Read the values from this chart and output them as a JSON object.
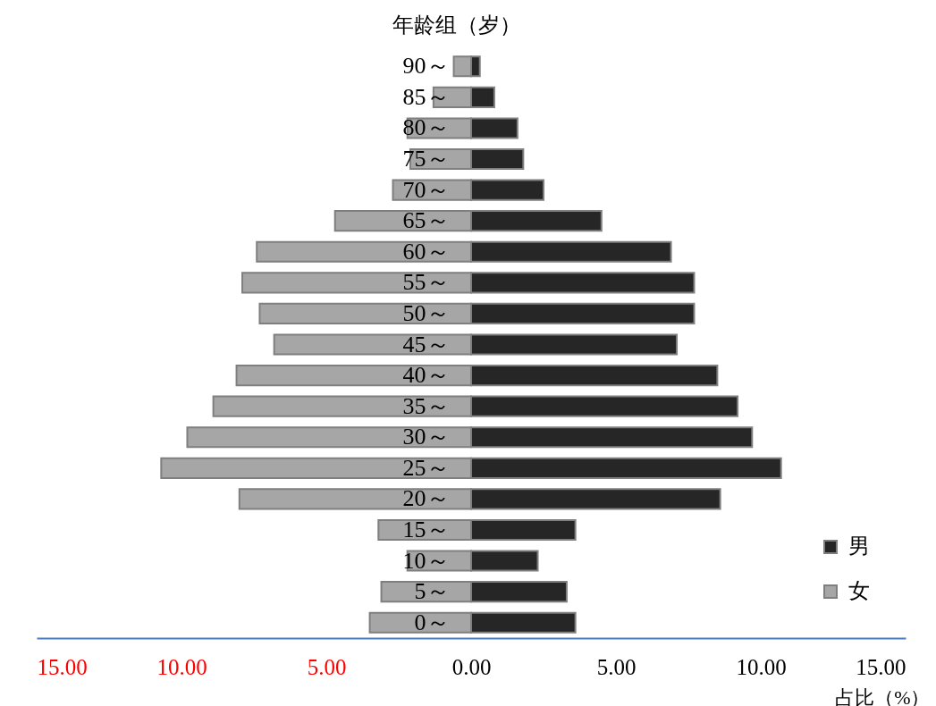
{
  "chart_data": {
    "type": "bar",
    "orientation": "horizontal",
    "stacked": true,
    "ylabel": "年龄组（岁）",
    "xlabel": "占比（%）",
    "categories": [
      "90～",
      "85～",
      "80～",
      "75～",
      "70～",
      "65～",
      "60～",
      "55～",
      "50～",
      "45～",
      "40～",
      "35～",
      "30～",
      "25～",
      "20～",
      "15～",
      "10～",
      "5～",
      "0～"
    ],
    "series": [
      {
        "name": "男",
        "color": "#262626",
        "values": [
          0.3,
          0.8,
          1.6,
          1.8,
          2.5,
          4.5,
          6.9,
          7.7,
          7.7,
          7.1,
          8.5,
          9.2,
          9.7,
          10.7,
          8.6,
          3.6,
          2.3,
          3.3,
          3.6
        ]
      },
      {
        "name": "女",
        "color": "#a6a6a6",
        "values": [
          -0.6,
          -1.3,
          -2.2,
          -2.1,
          -2.7,
          -4.7,
          -7.4,
          -7.9,
          -7.3,
          -6.8,
          -8.1,
          -8.9,
          -9.8,
          -10.7,
          -8.0,
          -3.2,
          -2.2,
          -3.1,
          -3.5
        ]
      }
    ],
    "xlim": [
      -15,
      15
    ],
    "xticks": [
      {
        "value": -15,
        "label": "15.00"
      },
      {
        "value": -10,
        "label": "10.00"
      },
      {
        "value": -5,
        "label": "5.00"
      },
      {
        "value": 0,
        "label": "0.00"
      },
      {
        "value": 5,
        "label": "5.00"
      },
      {
        "value": 10,
        "label": "10.00"
      },
      {
        "value": 15,
        "label": "15.00"
      }
    ],
    "legend": "bottom right"
  }
}
